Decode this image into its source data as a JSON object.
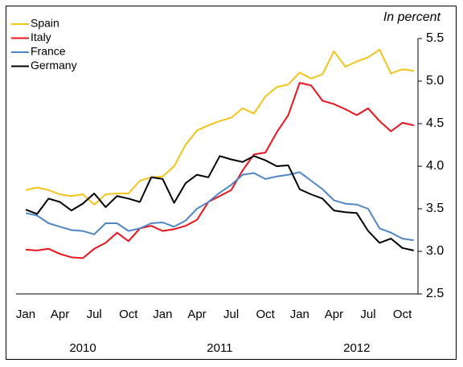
{
  "chart_data": {
    "type": "line",
    "unit_label": "In percent",
    "categories": [
      "Jan",
      null,
      null,
      "Apr",
      null,
      null,
      "Jul",
      null,
      null,
      "Oct",
      null,
      null,
      "Jan",
      null,
      null,
      "Apr",
      null,
      null,
      "Jul",
      null,
      null,
      "Oct",
      null,
      null,
      "Jan",
      null,
      null,
      "Apr",
      null,
      null,
      "Jul",
      null,
      null,
      "Oct",
      null
    ],
    "years": [
      "2010",
      "2011",
      "2012"
    ],
    "series": [
      {
        "name": "Spain",
        "color": "#f2c318",
        "values": [
          3.72,
          3.75,
          3.72,
          3.67,
          3.65,
          3.67,
          3.55,
          3.67,
          3.68,
          3.68,
          3.83,
          3.87,
          3.88,
          4.0,
          4.25,
          4.42,
          4.48,
          4.53,
          4.57,
          4.68,
          4.62,
          4.82,
          4.93,
          4.96,
          5.1,
          5.03,
          5.08,
          5.35,
          5.17,
          5.23,
          5.28,
          5.37,
          5.09,
          5.14,
          5.12
        ]
      },
      {
        "name": "Italy",
        "color": "#e8131b",
        "values": [
          3.02,
          3.01,
          3.03,
          2.97,
          2.93,
          2.92,
          3.03,
          3.1,
          3.22,
          3.12,
          3.27,
          3.3,
          3.24,
          3.26,
          3.3,
          3.37,
          3.58,
          3.65,
          3.72,
          3.95,
          4.14,
          4.16,
          4.4,
          4.6,
          4.98,
          4.95,
          4.77,
          4.73,
          4.67,
          4.6,
          4.68,
          4.53,
          4.41,
          4.51,
          4.48
        ]
      },
      {
        "name": "France",
        "color": "#4f86c6",
        "values": [
          3.45,
          3.42,
          3.33,
          3.29,
          3.25,
          3.24,
          3.2,
          3.33,
          3.33,
          3.24,
          3.27,
          3.33,
          3.34,
          3.29,
          3.36,
          3.5,
          3.58,
          3.69,
          3.78,
          3.9,
          3.92,
          3.85,
          3.88,
          3.9,
          3.93,
          3.83,
          3.73,
          3.6,
          3.56,
          3.55,
          3.5,
          3.27,
          3.22,
          3.15,
          3.13
        ]
      },
      {
        "name": "Germany",
        "color": "#000000",
        "values": [
          3.49,
          3.44,
          3.62,
          3.58,
          3.48,
          3.56,
          3.68,
          3.52,
          3.65,
          3.62,
          3.58,
          3.87,
          3.85,
          3.57,
          3.8,
          3.9,
          3.87,
          4.12,
          4.08,
          4.05,
          4.12,
          4.07,
          4.0,
          4.01,
          3.73,
          3.67,
          3.62,
          3.48,
          3.46,
          3.45,
          3.24,
          3.1,
          3.15,
          3.04,
          3.01
        ]
      }
    ],
    "ylim": [
      2.5,
      5.5
    ],
    "yticks": [
      {
        "value": 2.5,
        "label": "2.5"
      },
      {
        "value": 3,
        "label": "3.0"
      },
      {
        "value": 3.5,
        "label": "3.5"
      },
      {
        "value": 4,
        "label": "4.0"
      },
      {
        "value": 4.5,
        "label": "4.5"
      },
      {
        "value": 5,
        "label": "5.0"
      },
      {
        "value": 5.5,
        "label": "5.5"
      }
    ]
  }
}
